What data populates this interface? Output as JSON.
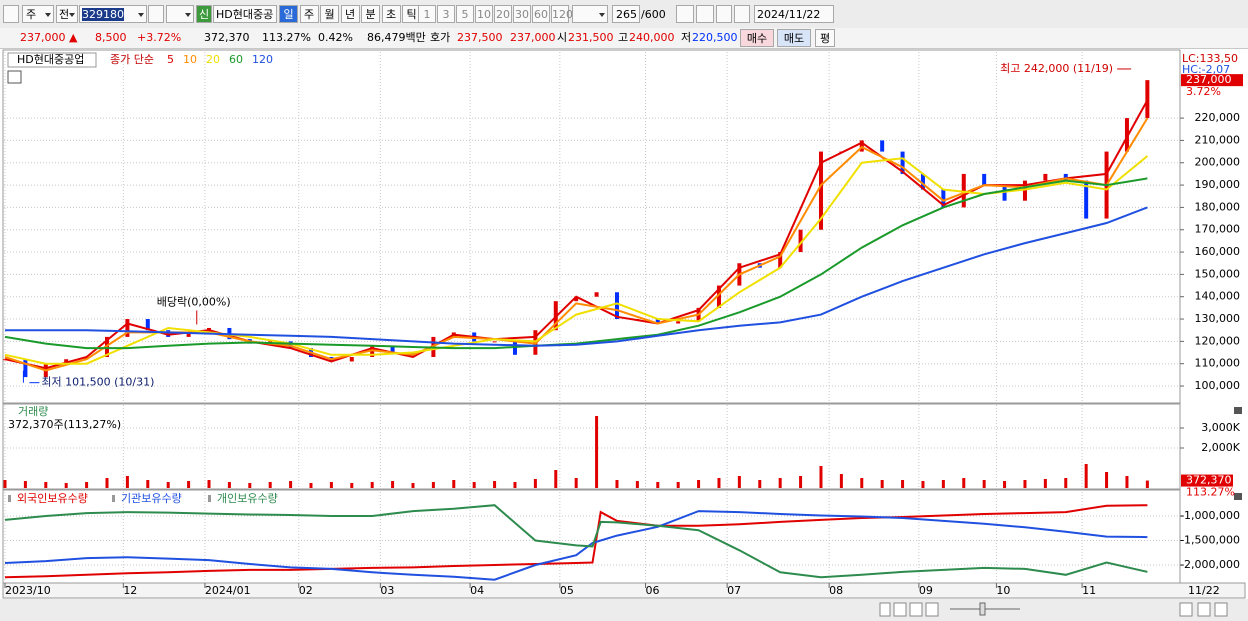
{
  "toolbar": {
    "market": "주",
    "prev": "전",
    "code": "329180",
    "badge": "신",
    "name": "HD현대중공",
    "periods": [
      "일",
      "주",
      "월",
      "년",
      "분",
      "초",
      "틱"
    ],
    "intervals": [
      "1",
      "3",
      "5",
      "10",
      "20",
      "30",
      "60",
      "120"
    ],
    "count": "265",
    "max": "/600",
    "date": "2024/11/22"
  },
  "info_bar": {
    "price": "237,000 ▲",
    "change": "8,500",
    "rate": "+3.72%",
    "volume": "372,370",
    "volume_ratio": "113.27%",
    "turnover": "0.42%",
    "amount": "86,479백만",
    "ask_label": "호가",
    "ask": "237,500",
    "bid": "237,000",
    "open_label": "시",
    "open": "231,500",
    "high_label": "고",
    "high": "240,000",
    "low_label": "저",
    "low": "220,500",
    "buttons": [
      "매수",
      "매도",
      "평"
    ]
  },
  "status": {
    "end_date": "11/22"
  },
  "chart_data": [
    {
      "type": "candlestick",
      "title": "HD현대중공업",
      "indicator": "종가 단순",
      "up_color": "#e00000",
      "down_color": "#0030ff",
      "x": [
        0,
        5,
        10,
        15,
        20,
        25,
        30,
        35,
        40,
        45,
        50,
        55,
        60,
        65,
        70,
        75,
        80,
        85,
        90,
        95,
        100,
        105,
        110,
        115,
        120,
        125,
        130,
        135,
        140,
        145,
        150,
        155,
        160,
        165,
        170,
        175,
        180,
        185,
        190,
        195,
        200,
        205,
        210,
        215,
        220,
        225,
        230,
        235,
        240,
        245,
        250,
        255,
        260,
        265,
        270,
        275,
        280
      ],
      "values": [
        112000,
        104000,
        110000,
        112000,
        113000,
        122000,
        130000,
        125000,
        122000,
        124000,
        126000,
        121000,
        119000,
        120000,
        117000,
        113000,
        111000,
        113000,
        118000,
        115000,
        113000,
        122000,
        124000,
        120000,
        120000,
        114000,
        125000,
        138000,
        140000,
        142000,
        130000,
        130000,
        128000,
        129000,
        135000,
        145000,
        155000,
        153000,
        160000,
        170000,
        205000,
        205000,
        210000,
        205000,
        195000,
        188000,
        180000,
        195000,
        190000,
        183000,
        192000,
        195000,
        192000,
        175000,
        205000,
        220000,
        237000
      ],
      "series": [
        {
          "name": "5",
          "color": "#e00000",
          "x": [
            0,
            10,
            20,
            30,
            40,
            50,
            60,
            70,
            80,
            90,
            100,
            110,
            120,
            130,
            140,
            150,
            160,
            170,
            180,
            190,
            200,
            210,
            220,
            230,
            240,
            250,
            260,
            270,
            280
          ],
          "values": [
            112000,
            108000,
            113000,
            128000,
            123000,
            125000,
            120000,
            117000,
            111000,
            117000,
            113000,
            123000,
            121000,
            122000,
            140000,
            131000,
            128000,
            134000,
            153000,
            159000,
            200000,
            209000,
            196000,
            181000,
            190000,
            190000,
            193000,
            195000,
            228000
          ]
        },
        {
          "name": "10",
          "color": "#ff8c00",
          "x": [
            0,
            10,
            20,
            30,
            40,
            50,
            60,
            70,
            80,
            90,
            100,
            110,
            120,
            130,
            140,
            150,
            160,
            170,
            180,
            190,
            200,
            210,
            220,
            230,
            240,
            250,
            260,
            270,
            280
          ],
          "values": [
            113000,
            107000,
            112000,
            124000,
            124000,
            124000,
            120000,
            118000,
            112000,
            116000,
            114000,
            122000,
            121000,
            119000,
            137000,
            134000,
            128000,
            132000,
            150000,
            158000,
            190000,
            207000,
            198000,
            183000,
            190000,
            189000,
            193000,
            190000,
            220000
          ]
        },
        {
          "name": "20",
          "color": "#f0e000",
          "x": [
            0,
            10,
            20,
            30,
            40,
            50,
            60,
            70,
            80,
            90,
            100,
            110,
            120,
            130,
            140,
            150,
            160,
            170,
            180,
            190,
            200,
            210,
            220,
            230,
            240,
            250,
            260,
            270,
            280
          ],
          "values": [
            114000,
            110000,
            110000,
            118000,
            126000,
            124000,
            122000,
            119000,
            114000,
            114000,
            115000,
            118000,
            121000,
            120000,
            132000,
            137000,
            130000,
            129000,
            142000,
            153000,
            175000,
            200000,
            202000,
            188000,
            186000,
            188000,
            191000,
            188000,
            203000
          ]
        },
        {
          "name": "60",
          "color": "#1a9a2a",
          "x": [
            0,
            10,
            20,
            30,
            40,
            50,
            60,
            70,
            80,
            90,
            100,
            110,
            120,
            130,
            140,
            150,
            160,
            170,
            180,
            190,
            200,
            210,
            220,
            230,
            240,
            250,
            260,
            270,
            280
          ],
          "values": [
            122000,
            119000,
            117000,
            117000,
            118000,
            119000,
            119500,
            119000,
            118500,
            118000,
            117500,
            117000,
            117000,
            118000,
            119000,
            121000,
            123000,
            127000,
            133000,
            140000,
            150000,
            162000,
            172000,
            180000,
            186000,
            189000,
            192000,
            190000,
            193000
          ]
        },
        {
          "name": "120",
          "color": "#2050e0",
          "x": [
            0,
            10,
            20,
            30,
            40,
            50,
            60,
            70,
            80,
            90,
            100,
            110,
            120,
            130,
            140,
            150,
            160,
            170,
            180,
            190,
            200,
            210,
            220,
            230,
            240,
            250,
            260,
            270,
            280
          ],
          "values": [
            125000,
            125000,
            125000,
            124500,
            124000,
            123500,
            123000,
            122500,
            122000,
            121000,
            120000,
            119000,
            118500,
            118000,
            118500,
            120000,
            122500,
            125000,
            127000,
            128500,
            132000,
            140000,
            147000,
            153000,
            159000,
            164000,
            168500,
            173000,
            180000
          ]
        }
      ],
      "xlim": [
        0,
        288
      ],
      "xticks": [
        {
          "value": 0,
          "label": "2023/10"
        },
        {
          "value": 29,
          "label": "12"
        },
        {
          "value": 49,
          "label": "2024/01"
        },
        {
          "value": 72,
          "label": "02"
        },
        {
          "value": 92,
          "label": "03"
        },
        {
          "value": 114,
          "label": "04"
        },
        {
          "value": 136,
          "label": "05"
        },
        {
          "value": 157,
          "label": "06"
        },
        {
          "value": 177,
          "label": "07"
        },
        {
          "value": 202,
          "label": "08"
        },
        {
          "value": 224,
          "label": "09"
        },
        {
          "value": 243,
          "label": "10"
        },
        {
          "value": 264,
          "label": "11"
        }
      ],
      "ylim": [
        92400,
        249600
      ],
      "yticks": [
        {
          "value": 100000,
          "label": "100,000"
        },
        {
          "value": 110000,
          "label": "110,000"
        },
        {
          "value": 120000,
          "label": "120,000"
        },
        {
          "value": 130000,
          "label": "130,000"
        },
        {
          "value": 140000,
          "label": "140,000"
        },
        {
          "value": 150000,
          "label": "150,000"
        },
        {
          "value": 160000,
          "label": "160,000"
        },
        {
          "value": 170000,
          "label": "170,000"
        },
        {
          "value": 180000,
          "label": "180,000"
        },
        {
          "value": 190000,
          "label": "190,000"
        },
        {
          "value": 200000,
          "label": "200,000"
        },
        {
          "value": 210000,
          "label": "210,000"
        },
        {
          "value": 220000,
          "label": "220,000"
        }
      ],
      "grid": true,
      "annotations": [
        {
          "text": "최고 242,000 (11/19)",
          "x": 277,
          "value": 242000
        },
        {
          "text": "최저 101,500 (10/31)",
          "x": 5,
          "value": 101500
        }
      ],
      "event": {
        "text": "배당락(0,00%)",
        "x": 47
      },
      "lc_label": "LC:133,50",
      "hc_label": "HC:-2,07",
      "last_label": "237,000",
      "last_rate": "3.72%"
    },
    {
      "type": "bar",
      "title": "거래량",
      "subtitle": "372,370주(113,27%)",
      "color": "#e00000",
      "x": [
        0,
        5,
        10,
        15,
        20,
        25,
        30,
        35,
        40,
        45,
        50,
        55,
        60,
        65,
        70,
        75,
        80,
        85,
        90,
        95,
        100,
        105,
        110,
        115,
        120,
        125,
        130,
        135,
        140,
        145,
        150,
        155,
        160,
        165,
        170,
        175,
        180,
        185,
        190,
        195,
        200,
        205,
        210,
        215,
        220,
        225,
        230,
        235,
        240,
        245,
        250,
        255,
        260,
        265,
        270,
        275,
        280
      ],
      "values": [
        400,
        350,
        300,
        250,
        300,
        500,
        600,
        400,
        300,
        350,
        400,
        300,
        250,
        300,
        350,
        250,
        300,
        250,
        300,
        350,
        250,
        300,
        400,
        300,
        350,
        300,
        450,
        900,
        500,
        3600,
        400,
        350,
        300,
        300,
        400,
        500,
        600,
        400,
        500,
        600,
        1100,
        700,
        500,
        400,
        400,
        350,
        400,
        500,
        400,
        350,
        400,
        450,
        500,
        1200,
        800,
        600,
        372.37
      ],
      "xlim": [
        0,
        288
      ],
      "ylim": [
        0,
        4150
      ],
      "yticks": [
        {
          "value": 2000,
          "label": "2,000K"
        },
        {
          "value": 3000,
          "label": "3,000K"
        }
      ],
      "grid": true,
      "last_label": "372,370",
      "last_rate": "113.27%"
    },
    {
      "type": "line",
      "x": [
        0,
        10,
        20,
        30,
        40,
        50,
        60,
        70,
        80,
        90,
        100,
        110,
        120,
        130,
        140,
        144,
        146,
        150,
        160,
        170,
        180,
        190,
        200,
        210,
        220,
        230,
        240,
        250,
        260,
        270,
        280
      ],
      "series": [
        {
          "name": "외국인보유수량",
          "color": "#e00000",
          "values": [
            -2250000,
            -2230000,
            -2200000,
            -2170000,
            -2150000,
            -2120000,
            -2100000,
            -2100000,
            -2080000,
            -2060000,
            -2050000,
            -2020000,
            -2000000,
            -1980000,
            -1960000,
            -1950000,
            -920000,
            -1100000,
            -1200000,
            -1200000,
            -1170000,
            -1120000,
            -1080000,
            -1040000,
            -1020000,
            -990000,
            -960000,
            -940000,
            -920000,
            -790000,
            -780000
          ]
        },
        {
          "name": "기관보유수량",
          "color": "#2050e0",
          "values": [
            -1960000,
            -1920000,
            -1860000,
            -1840000,
            -1870000,
            -1900000,
            -1980000,
            -2050000,
            -2080000,
            -2150000,
            -2200000,
            -2240000,
            -2300000,
            -2000000,
            -1800000,
            -1550000,
            -1500000,
            -1400000,
            -1220000,
            -900000,
            -920000,
            -960000,
            -990000,
            -1010000,
            -1040000,
            -1100000,
            -1160000,
            -1230000,
            -1320000,
            -1420000,
            -1430000
          ]
        },
        {
          "name": "개인보유수량",
          "color": "#2e8b4e",
          "values": [
            -1080000,
            -1000000,
            -940000,
            -920000,
            -930000,
            -950000,
            -970000,
            -980000,
            -1000000,
            -1000000,
            -900000,
            -850000,
            -780000,
            -1500000,
            -1600000,
            -1620000,
            -1120000,
            -1130000,
            -1200000,
            -1290000,
            -1700000,
            -2150000,
            -2250000,
            -2200000,
            -2140000,
            -2100000,
            -2060000,
            -2080000,
            -2200000,
            -1950000,
            -2140000
          ]
        }
      ],
      "xlim": [
        0,
        288
      ],
      "ylim": [
        -2347000,
        -510000
      ],
      "yticks": [
        {
          "value": -2000000,
          "label": "-2,000,000"
        },
        {
          "value": -1500000,
          "label": "-1,500,000"
        },
        {
          "value": -1000000,
          "label": "-1,000,000"
        }
      ],
      "grid": true
    }
  ]
}
